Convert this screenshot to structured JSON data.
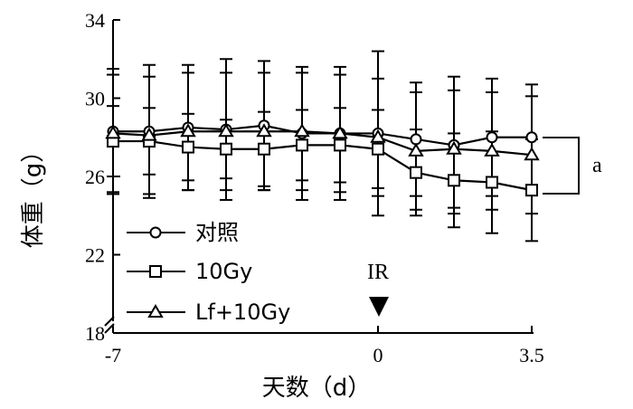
{
  "chart_data": {
    "type": "line",
    "xlabel": "天数（d）",
    "ylabel": "体重（g）",
    "ylim": [
      18,
      34
    ],
    "yticks": [
      18,
      22,
      26,
      30,
      34
    ],
    "ytick_labels": [
      "18",
      "22",
      "26",
      "30",
      "34"
    ],
    "xlim": [
      -7,
      3.5
    ],
    "xticks": [
      -7,
      0,
      3.5
    ],
    "xtick_labels": [
      "-7",
      "0",
      "3.5"
    ],
    "x": [
      -7,
      -6.3,
      -5,
      -4,
      -3,
      -2,
      -1,
      0,
      1,
      2,
      3,
      4
    ],
    "x_note": "",
    "series": [
      {
        "name": "对照",
        "marker": "circle",
        "values": [
          28.3,
          28.3,
          28.5,
          28.4,
          28.6,
          28.2,
          28.2,
          28.2,
          27.9,
          27.6,
          28.0,
          28.0
        ],
        "errors": [
          3.2,
          3.4,
          3.2,
          3.6,
          3.3,
          3.4,
          3.4,
          4.2,
          2.9,
          3.5,
          3.0,
          2.7
        ]
      },
      {
        "name": "10Gy",
        "marker": "square",
        "values": [
          27.8,
          27.8,
          27.5,
          27.4,
          27.4,
          27.6,
          27.6,
          27.4,
          26.2,
          25.8,
          25.7,
          25.3
        ],
        "errors": [
          1.8,
          1.7,
          1.7,
          1.5,
          1.9,
          1.8,
          1.9,
          2.0,
          2.2,
          2.4,
          2.6,
          2.6
        ]
      },
      {
        "name": "Lf+10Gy",
        "marker": "triangle",
        "values": [
          28.2,
          28.1,
          28.3,
          28.3,
          28.3,
          28.3,
          28.2,
          28.0,
          27.3,
          27.4,
          27.3,
          27.1
        ],
        "errors": [
          3.0,
          3.0,
          3.0,
          3.0,
          3.0,
          3.0,
          3.0,
          3.0,
          3.0,
          3.0,
          3.0,
          3.0
        ]
      }
    ],
    "annotations": {
      "ir_label": "IR",
      "ir_x": 0,
      "significance_label": "a"
    },
    "legend_position": "bottom-left",
    "grid": false
  }
}
